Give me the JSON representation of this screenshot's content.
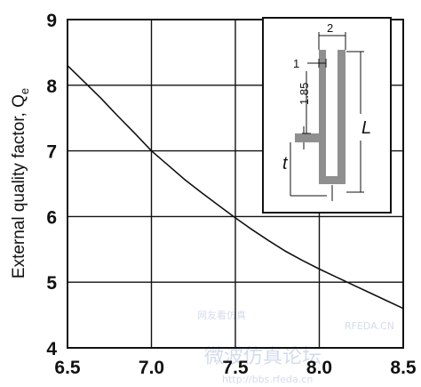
{
  "chart_data": {
    "type": "line",
    "title": "",
    "xlabel": "",
    "ylabel": "External quality factor, Q",
    "ylabel_subscript": "e",
    "xlim": [
      6.5,
      8.5
    ],
    "ylim": [
      4,
      9
    ],
    "x_ticks": [
      "6.5",
      "7.0",
      "7.5",
      "8.0",
      "8.5"
    ],
    "y_ticks": [
      "4",
      "5",
      "6",
      "7",
      "8",
      "9"
    ],
    "grid": true,
    "series": [
      {
        "x": [
          6.5,
          6.6,
          6.7,
          6.8,
          6.9,
          7.0,
          7.1,
          7.2,
          7.3,
          7.4,
          7.5,
          7.6,
          7.7,
          7.8,
          7.9,
          8.0,
          8.1,
          8.2,
          8.3,
          8.4,
          8.5
        ],
        "y": [
          8.3,
          8.05,
          7.8,
          7.53,
          7.27,
          7.0,
          6.78,
          6.56,
          6.36,
          6.17,
          5.98,
          5.8,
          5.63,
          5.47,
          5.33,
          5.2,
          5.08,
          4.96,
          4.84,
          4.72,
          4.6
        ]
      }
    ],
    "inset": {
      "labels": {
        "dim_2": "2",
        "dim_1": "1",
        "dim_185": "1.85",
        "L": "L",
        "t": "t"
      }
    }
  },
  "watermark": {
    "line1": "网友看仿真",
    "line2": "RFEDA.CN",
    "line3": "微波仿真论坛",
    "line4": "http://bbs.rfeda.cn"
  }
}
